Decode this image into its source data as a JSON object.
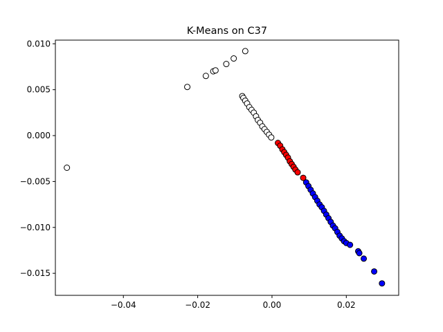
{
  "chart_data": {
    "type": "scatter",
    "title": "K-Means on C37",
    "xlabel": "",
    "ylabel": "",
    "xlim": [
      -0.0583,
      0.0341
    ],
    "ylim": [
      -0.0174,
      0.0104
    ],
    "x_ticks": [
      -0.04,
      -0.02,
      0.0,
      0.02
    ],
    "x_tick_labels": [
      "−0.04",
      "−0.02",
      "0.00",
      "0.02"
    ],
    "y_ticks": [
      0.01,
      0.005,
      0.0,
      -0.005,
      -0.01,
      -0.015
    ],
    "y_tick_labels": [
      "0.010",
      "0.005",
      "0.000",
      "−0.005",
      "−0.010",
      "−0.015"
    ],
    "grid": false,
    "legend": null,
    "series": [
      {
        "color": "#ffffff",
        "points": [
          [
            -0.0552,
            -0.0035
          ],
          [
            -0.0228,
            0.0053
          ],
          [
            -0.0178,
            0.0065
          ],
          [
            -0.0158,
            0.007
          ],
          [
            -0.0152,
            0.0071
          ],
          [
            -0.0123,
            0.0078
          ],
          [
            -0.0103,
            0.0084
          ],
          [
            -0.0072,
            0.0092
          ],
          [
            -0.008,
            0.0043
          ],
          [
            -0.0077,
            0.0041
          ],
          [
            -0.0072,
            0.0038
          ],
          [
            -0.0067,
            0.0035
          ],
          [
            -0.0061,
            0.0031
          ],
          [
            -0.0055,
            0.0028
          ],
          [
            -0.0049,
            0.0025
          ],
          [
            -0.0043,
            0.0021
          ],
          [
            -0.0038,
            0.0017
          ],
          [
            -0.0032,
            0.0014
          ],
          [
            -0.0026,
            0.001
          ],
          [
            -0.002,
            0.0007
          ],
          [
            -0.0014,
            0.0004
          ],
          [
            -0.0008,
            0.0001
          ],
          [
            -0.0002,
            -0.0002
          ]
        ]
      },
      {
        "color": "#ff0000",
        "points": [
          [
            0.0016,
            -0.0008
          ],
          [
            0.0022,
            -0.0011
          ],
          [
            0.0028,
            -0.0015
          ],
          [
            0.0033,
            -0.0018
          ],
          [
            0.0038,
            -0.0021
          ],
          [
            0.0043,
            -0.0024
          ],
          [
            0.0048,
            -0.0028
          ],
          [
            0.0053,
            -0.0031
          ],
          [
            0.0058,
            -0.0034
          ],
          [
            0.0063,
            -0.0037
          ],
          [
            0.0069,
            -0.004
          ],
          [
            0.0084,
            -0.0046
          ]
        ]
      },
      {
        "color": "#0000ff",
        "points": [
          [
            0.0092,
            -0.0051
          ],
          [
            0.0098,
            -0.0055
          ],
          [
            0.0104,
            -0.0059
          ],
          [
            0.011,
            -0.0063
          ],
          [
            0.0116,
            -0.0067
          ],
          [
            0.0122,
            -0.0071
          ],
          [
            0.0128,
            -0.0075
          ],
          [
            0.0134,
            -0.0078
          ],
          [
            0.014,
            -0.0082
          ],
          [
            0.0146,
            -0.0086
          ],
          [
            0.0152,
            -0.009
          ],
          [
            0.0158,
            -0.0094
          ],
          [
            0.0164,
            -0.0098
          ],
          [
            0.017,
            -0.0101
          ],
          [
            0.0176,
            -0.0105
          ],
          [
            0.0182,
            -0.0109
          ],
          [
            0.0188,
            -0.0112
          ],
          [
            0.0194,
            -0.0115
          ],
          [
            0.02,
            -0.0117
          ],
          [
            0.021,
            -0.0119
          ],
          [
            0.0232,
            -0.0126
          ],
          [
            0.0235,
            -0.0128
          ],
          [
            0.0247,
            -0.0134
          ],
          [
            0.0275,
            -0.0148
          ],
          [
            0.0296,
            -0.0161
          ]
        ]
      }
    ]
  }
}
